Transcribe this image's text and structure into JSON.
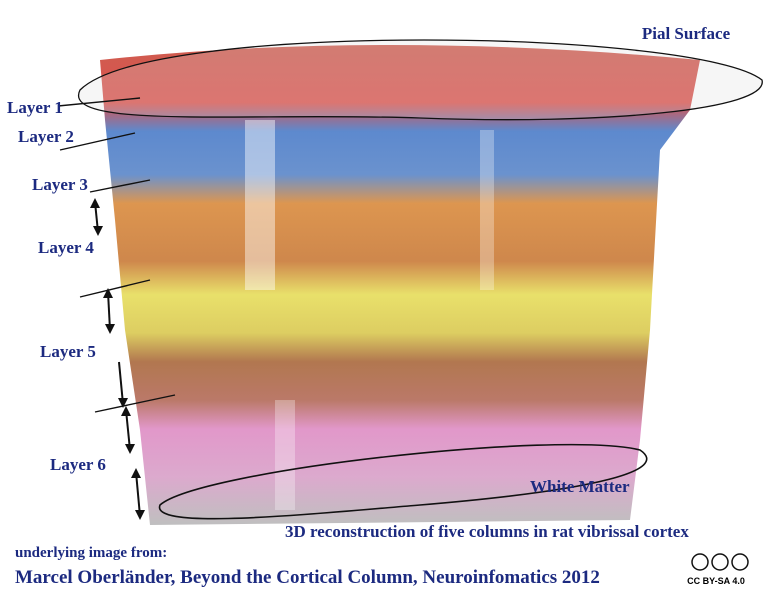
{
  "labels": {
    "pial_surface": "Pial Surface",
    "layers": [
      "Layer 1",
      "Layer 2",
      "Layer 3",
      "Layer 4",
      "Layer 5",
      "Layer 6"
    ],
    "white_matter": "White Matter"
  },
  "caption": "3D reconstruction of five columns in rat vibrissal cortex",
  "credit": {
    "intro": "underlying image from:",
    "citation": "Marcel Oberländer, Beyond the Cortical Column, Neuroinfomatics 2012"
  },
  "license": "CC BY-SA 4.0"
}
